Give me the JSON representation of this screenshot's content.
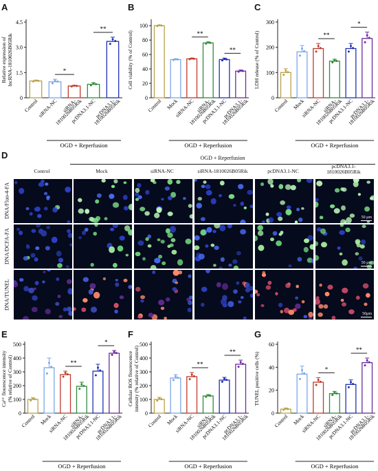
{
  "figure": {
    "panel_letters": [
      "A",
      "B",
      "C",
      "D",
      "E",
      "F",
      "G"
    ],
    "colors": {
      "Control": "#b9a24a",
      "Mock": "#7aa6e8",
      "siRNA-NC": "#c0392b",
      "siRNA-1810026B05Rik": "#2e8b3a",
      "pcDNA3.1-NC": "#1f2fb3",
      "pcDNA3.1-1810026B05Rik": "#6a2b9e"
    },
    "microscopy": {
      "header": "OGD + Reperfusion",
      "columns": [
        "Control",
        "Mock",
        "siRNA-NC",
        "siRNA-1810026B05Rik",
        "pcDNA3.1-NC",
        "pcDNA3.1-\n1810026B05Rik"
      ],
      "rows": [
        {
          "label": "DNA/Fluo-4-FA",
          "scale_bar": "50 μm"
        },
        {
          "label": "DNA/DCFA-FA",
          "scale_bar": "50 μm"
        },
        {
          "label": "DNA/TUNEL",
          "scale_bar": "50μm"
        }
      ]
    }
  },
  "chart_data": [
    {
      "panel": "A",
      "type": "bar",
      "ylabel": "Relative expression of\nlncRNA-1810026B05Rik",
      "yticks": [
        "0",
        "1.5",
        "3.0",
        "4.5"
      ],
      "ylim": [
        0,
        4.5
      ],
      "categories": [
        "Control",
        "siRNA-NC",
        "siRNA-\n1810026B05Rik",
        "pcDNA3.1-NC",
        "pcDNA3.1-\n1810026B05Rik"
      ],
      "colors": [
        "#b9a24a",
        "#7aa6e8",
        "#c0392b",
        "#2e8b3a",
        "#1f2fb3"
      ],
      "values": [
        1.0,
        0.95,
        0.7,
        0.8,
        3.35
      ],
      "errors": [
        0.05,
        0.15,
        0.04,
        0.1,
        0.25
      ],
      "xgroup": "OGD + Reperfusion",
      "sig": [
        {
          "from": 1,
          "to": 2,
          "label": "*"
        },
        {
          "from": 3,
          "to": 4,
          "label": "**"
        }
      ]
    },
    {
      "panel": "B",
      "type": "bar",
      "ylabel": "Cell viability (% of Control)",
      "yticks": [
        "0",
        "20",
        "40",
        "60",
        "80",
        "100"
      ],
      "ylim": [
        0,
        105
      ],
      "categories": [
        "Control",
        "Mock",
        "siRNA-NC",
        "siRNA-\n1810026B05Rik",
        "pcDNA3.1-NC",
        "pcDNA3.1-\n1810026B05Rik"
      ],
      "colors": [
        "#b9a24a",
        "#7aa6e8",
        "#c0392b",
        "#2e8b3a",
        "#1f2fb3",
        "#6a2b9e"
      ],
      "values": [
        100,
        53,
        54,
        76,
        53,
        37
      ],
      "errors": [
        1,
        1,
        1,
        1.5,
        2,
        1.5
      ],
      "xgroup": "OGD + Reperfusion",
      "sig": [
        {
          "from": 2,
          "to": 3,
          "label": "**"
        },
        {
          "from": 4,
          "to": 5,
          "label": "**"
        }
      ]
    },
    {
      "panel": "C",
      "type": "bar",
      "ylabel": "LDH release (% of Control)",
      "yticks": [
        "0",
        "100",
        "200",
        "300"
      ],
      "ylim": [
        0,
        300
      ],
      "categories": [
        "Control",
        "Mock",
        "siRNA-NC",
        "siRNA-\n1810026B05Rik",
        "pcDNA3.1-NC",
        "pcDNA3.1-\n1810026B05Rik"
      ],
      "colors": [
        "#b9a24a",
        "#7aa6e8",
        "#c0392b",
        "#2e8b3a",
        "#1f2fb3",
        "#6a2b9e"
      ],
      "values": [
        100,
        182,
        195,
        145,
        195,
        235
      ],
      "errors": [
        15,
        25,
        20,
        8,
        20,
        25
      ],
      "xgroup": "OGD + Reperfusion",
      "sig": [
        {
          "from": 2,
          "to": 3,
          "label": "**"
        },
        {
          "from": 4,
          "to": 5,
          "label": "*"
        }
      ]
    },
    {
      "panel": "E",
      "type": "bar",
      "ylabel": "Ca²⁺ flourescence intensity\n(% relative of Control)",
      "yticks": [
        "0",
        "100",
        "200",
        "300",
        "400",
        "500"
      ],
      "ylim": [
        0,
        500
      ],
      "categories": [
        "Control",
        "Mock",
        "siRNA-NC",
        "siRNA-\n1810026B05Rik",
        "pcDNA3.1-NC",
        "pcDNA3.1-\n1810026B05Rik"
      ],
      "colors": [
        "#b9a24a",
        "#7aa6e8",
        "#c0392b",
        "#2e8b3a",
        "#1f2fb3",
        "#6a2b9e"
      ],
      "values": [
        100,
        330,
        280,
        195,
        305,
        435
      ],
      "errors": [
        12,
        70,
        25,
        30,
        50,
        20
      ],
      "xgroup": "OGD + Reperfusion",
      "sig": [
        {
          "from": 2,
          "to": 3,
          "label": "**"
        },
        {
          "from": 4,
          "to": 5,
          "label": "*"
        }
      ]
    },
    {
      "panel": "F",
      "type": "bar",
      "ylabel": "Cellular ROS flourescence\nintensity (% relative of Control)",
      "yticks": [
        "0",
        "100",
        "200",
        "300",
        "400",
        "500"
      ],
      "ylim": [
        0,
        500
      ],
      "categories": [
        "Control",
        "Mock",
        "siRNA-NC",
        "siRNA-\n1810026B05Rik",
        "pcDNA3.1-NC",
        "pcDNA3.1-\n1810026B05Rik"
      ],
      "colors": [
        "#b9a24a",
        "#7aa6e8",
        "#c0392b",
        "#2e8b3a",
        "#1f2fb3",
        "#6a2b9e"
      ],
      "values": [
        100,
        255,
        265,
        125,
        240,
        355
      ],
      "errors": [
        15,
        25,
        30,
        10,
        20,
        30
      ],
      "xgroup": "OGD + Reperfusion",
      "sig": [
        {
          "from": 2,
          "to": 3,
          "label": "**"
        },
        {
          "from": 4,
          "to": 5,
          "label": "**"
        }
      ]
    },
    {
      "panel": "G",
      "type": "bar",
      "ylabel": "TUNEL positive cells (%)",
      "yticks": [
        "0",
        "20",
        "40",
        "60"
      ],
      "ylim": [
        0,
        60
      ],
      "categories": [
        "Control",
        "Mock",
        "siRNA-NC",
        "siRNA-\n1810026B05Rik",
        "pcDNA3.1-NC",
        "pcDNA3.1-\n1810026B05Rik"
      ],
      "colors": [
        "#b9a24a",
        "#7aa6e8",
        "#c0392b",
        "#2e8b3a",
        "#1f2fb3",
        "#6a2b9e"
      ],
      "values": [
        3.5,
        34,
        27,
        17,
        25,
        44
      ],
      "errors": [
        1,
        7,
        4,
        2,
        4,
        4
      ],
      "xgroup": "OGD + Reperfusion",
      "sig": [
        {
          "from": 2,
          "to": 3,
          "label": "*"
        },
        {
          "from": 4,
          "to": 5,
          "label": "**"
        }
      ]
    }
  ]
}
